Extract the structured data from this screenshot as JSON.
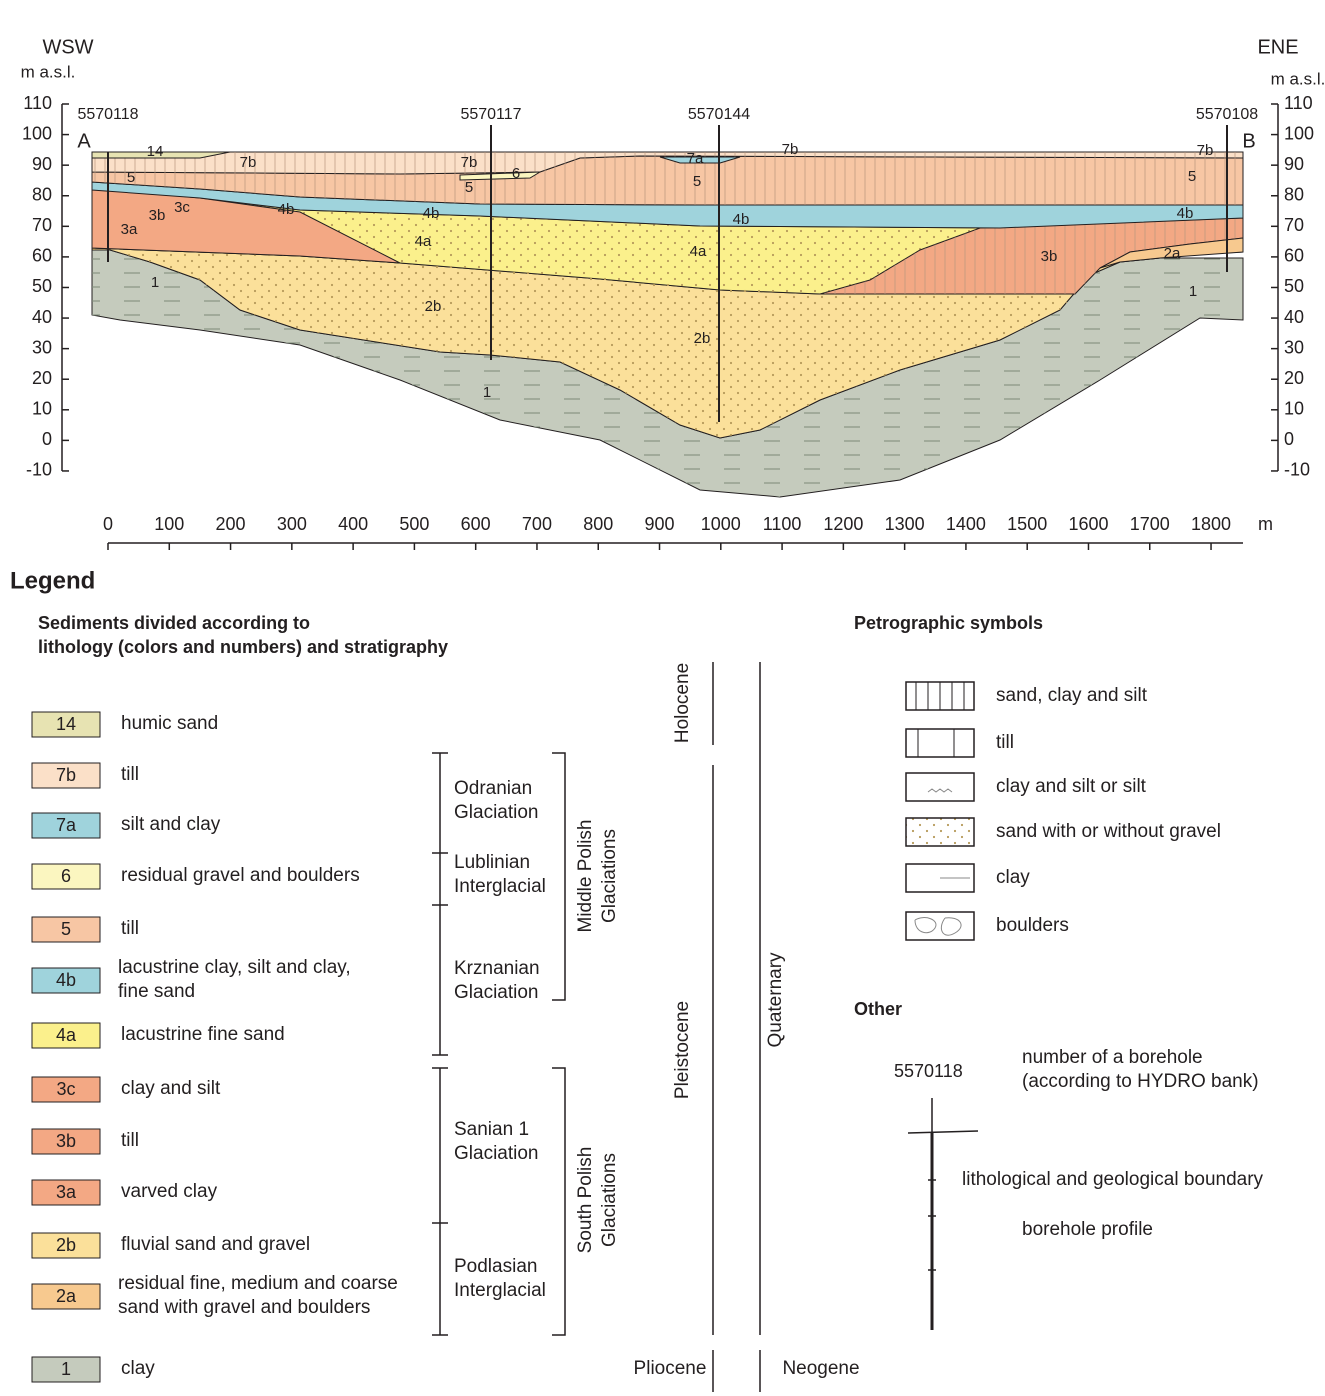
{
  "section": {
    "left_direction": "WSW",
    "right_direction": "ENE",
    "left_unit": "m a.s.l.",
    "right_unit": "m a.s.l.",
    "x_unit": "m",
    "left_end": "A",
    "right_end": "B",
    "yticks": [
      110,
      100,
      90,
      80,
      70,
      60,
      50,
      40,
      30,
      20,
      10,
      0,
      -10
    ],
    "xticks": [
      0,
      100,
      200,
      300,
      400,
      500,
      600,
      700,
      800,
      900,
      1000,
      1100,
      1200,
      1300,
      1400,
      1500,
      1600,
      1700,
      1800
    ],
    "boreholes": [
      "5570118",
      "5570117",
      "5570144",
      "5570108"
    ],
    "layer_labels": [
      "14",
      "7b",
      "7b",
      "6",
      "7a",
      "7b",
      "7b",
      "5",
      "5",
      "5",
      "5",
      "3c",
      "3b",
      "3a",
      "4b",
      "4b",
      "4b",
      "4b",
      "4a",
      "4a",
      "3b",
      "2a",
      "1",
      "2b",
      "2b",
      "1",
      "1"
    ]
  },
  "legend": {
    "title": "Legend",
    "sediments_heading": [
      "Sediments divided according to",
      "lithology (colors and numbers) and stratigraphy"
    ],
    "units": [
      {
        "code": "14",
        "description": [
          "humic sand"
        ]
      },
      {
        "code": "7b",
        "description": [
          "till"
        ]
      },
      {
        "code": "7a",
        "description": [
          "silt and clay"
        ]
      },
      {
        "code": "6",
        "description": [
          "residual gravel and boulders"
        ]
      },
      {
        "code": "5",
        "description": [
          "till"
        ]
      },
      {
        "code": "4b",
        "description": [
          "lacustrine clay, silt and clay,",
          "fine sand"
        ]
      },
      {
        "code": "4a",
        "description": [
          "lacustrine fine sand"
        ]
      },
      {
        "code": "3c",
        "description": [
          "clay and silt"
        ]
      },
      {
        "code": "3b",
        "description": [
          "till"
        ]
      },
      {
        "code": "3a",
        "description": [
          "varved clay"
        ]
      },
      {
        "code": "2b",
        "description": [
          "fluvial sand and gravel"
        ]
      },
      {
        "code": "2a",
        "description": [
          "residual fine, medium and coarse",
          "sand with gravel and boulders"
        ]
      },
      {
        "code": "1",
        "description": [
          "clay"
        ]
      }
    ],
    "stages": [
      [
        "Odranian",
        "Glaciation"
      ],
      [
        "Lublinian",
        "Interglacial"
      ],
      [
        "Krznanian",
        "Glaciation"
      ],
      [
        "Sanian 1",
        "Glaciation"
      ],
      [
        "Podlasian",
        "Interglacial"
      ]
    ],
    "groups": [
      [
        "Middle Polish",
        "Glaciations"
      ],
      [
        "South Polish",
        "Glaciations"
      ]
    ],
    "series": [
      "Holocene",
      "Pleistocene",
      "Pliocene"
    ],
    "systems": [
      "Quaternary",
      "Neogene"
    ],
    "petrographic_heading": "Petrographic symbols",
    "symbols": [
      "sand, clay and silt",
      "till",
      "clay and silt or silt",
      "sand with or without gravel",
      "clay",
      "boulders"
    ],
    "other_heading": "Other",
    "borehole_example": "5570118",
    "borehole_note": [
      "number of a borehole",
      "(according to HYDRO bank)"
    ],
    "boundary_note": "lithological and geological boundary",
    "profile_note": "borehole profile"
  }
}
